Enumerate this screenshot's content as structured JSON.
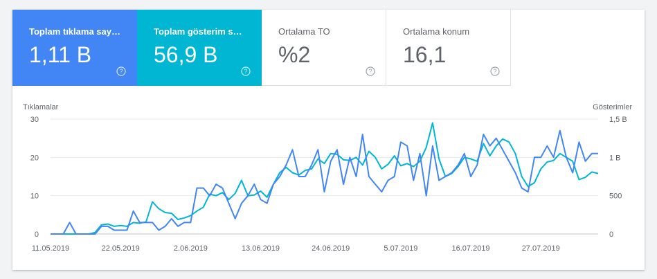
{
  "tiles": [
    {
      "label": "Toplam tıklama sayısı",
      "value": "1,11 B"
    },
    {
      "label": "Toplam gösterim sayısı",
      "value": "56,9 B"
    },
    {
      "label": "Ortalama TO",
      "value": "%2"
    },
    {
      "label": "Ortalama konum",
      "value": "16,1"
    }
  ],
  "colors": {
    "clicks": "#4285f4",
    "impressions": "#00b6d3"
  },
  "chart_data": {
    "type": "line",
    "ylabel_left": "Tıklamalar",
    "ylabel_right": "Gösterimler",
    "yticks_left": [
      "0",
      "10",
      "20",
      "30"
    ],
    "yticks_right": [
      "0",
      "500",
      "1 B",
      "1,5 B"
    ],
    "xtick_labels": [
      "11.05.2019",
      "22.05.2019",
      "2.06.2019",
      "13.06.2019",
      "24.06.2019",
      "5.07.2019",
      "16.07.2019",
      "27.07.2019"
    ],
    "ylim_left": [
      0,
      30
    ],
    "ylim_right": [
      0,
      1500
    ],
    "grid": true,
    "series": [
      {
        "name": "Tıklamalar",
        "axis": "left",
        "values": [
          0,
          0,
          0,
          3,
          0,
          0,
          0,
          0,
          2,
          2,
          1,
          1,
          1,
          6,
          3,
          3,
          3,
          1,
          2,
          4,
          2,
          3,
          3,
          12,
          12,
          10,
          13,
          12,
          8,
          4,
          8,
          10,
          13,
          9,
          8,
          13,
          15,
          18,
          22,
          15,
          15,
          18,
          22,
          11,
          19,
          22,
          13,
          20,
          15,
          26,
          15,
          13,
          11,
          14,
          15,
          24,
          23,
          14,
          21,
          10,
          23,
          14,
          15,
          16,
          18,
          21,
          15,
          18,
          26,
          23,
          25,
          22,
          19,
          16,
          12,
          11,
          20,
          20,
          23,
          20,
          27,
          20,
          16,
          24,
          19,
          21,
          21
        ]
      },
      {
        "name": "Gösterimler",
        "axis": "right",
        "values": [
          0,
          0,
          0,
          0,
          0,
          0,
          0,
          20,
          120,
          130,
          100,
          110,
          100,
          150,
          140,
          160,
          420,
          330,
          280,
          270,
          190,
          210,
          240,
          300,
          350,
          520,
          500,
          540,
          450,
          530,
          700,
          500,
          510,
          560,
          480,
          650,
          800,
          870,
          800,
          770,
          830,
          850,
          980,
          920,
          1050,
          1040,
          970,
          960,
          1000,
          900,
          1080,
          1000,
          850,
          910,
          1020,
          890,
          920,
          880,
          950,
          1130,
          1450,
          980,
          750,
          790,
          880,
          1000,
          980,
          950,
          1180,
          1020,
          1150,
          1240,
          1200,
          1050,
          750,
          620,
          670,
          850,
          940,
          960,
          1050,
          1000,
          950,
          710,
          740,
          810,
          790
        ]
      }
    ]
  }
}
